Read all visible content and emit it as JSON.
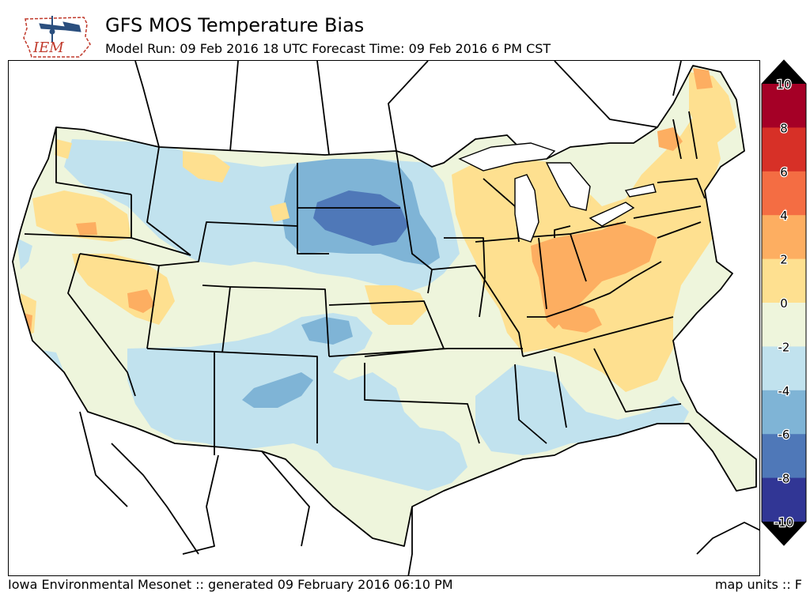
{
  "header": {
    "title": "GFS MOS Temperature Bias",
    "subtitle": "Model Run: 09 Feb 2016 18 UTC Forecast Time: 09 Feb 2016 6 PM CST",
    "logo_text": "IEM"
  },
  "legend": {
    "labels": [
      "10",
      "8",
      "6",
      "4",
      "2",
      "0",
      "-2",
      "-4",
      "-6",
      "-8",
      "-10"
    ],
    "bins": [
      {
        "range": "8 to 10",
        "color": "#a50026"
      },
      {
        "range": "6 to 8",
        "color": "#d73027"
      },
      {
        "range": "4 to 6",
        "color": "#f46d43"
      },
      {
        "range": "2 to 4",
        "color": "#fdae61"
      },
      {
        "range": "0 to 2",
        "color": "#fee090"
      },
      {
        "range": "-2 to 0",
        "color": "#eef5dc"
      },
      {
        "range": "-4 to -2",
        "color": "#c1e2ee"
      },
      {
        "range": "-6 to -4",
        "color": "#7fb4d6"
      },
      {
        "range": "-8 to -6",
        "color": "#4f78b8"
      },
      {
        "range": "-10 to -8",
        "color": "#313695"
      }
    ],
    "over_color": "#000000",
    "under_color": "#000000"
  },
  "map": {
    "background_color": "#ffffff",
    "boundary_color": "#000000",
    "water_color": "#ffffff"
  },
  "footer": {
    "left": "Iowa Environmental Mesonet :: generated 09 February 2016 06:10 PM",
    "right": "map units :: F"
  }
}
